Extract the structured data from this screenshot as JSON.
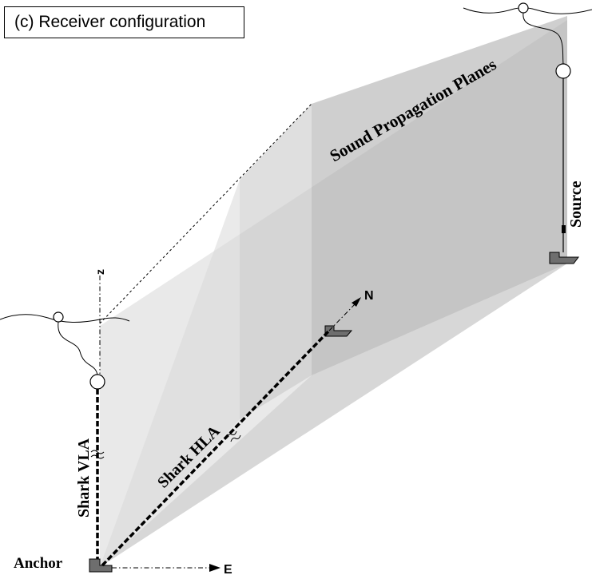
{
  "title": "(c) Receiver configuration",
  "labels": {
    "sound_planes": "Sound Propagation Planes",
    "source": "Source",
    "shark_vla": "Shark VLA",
    "shark_hla": "Shark HLA",
    "anchor": "Anchor",
    "axis_z": "z",
    "axis_n": "N",
    "axis_e": "E"
  },
  "colors": {
    "plane_light": "#e6e6e6",
    "plane_mid": "#c8c8c8",
    "plane_dark": "#b4b4b4",
    "anchor_fill": "#6e6e6e"
  }
}
